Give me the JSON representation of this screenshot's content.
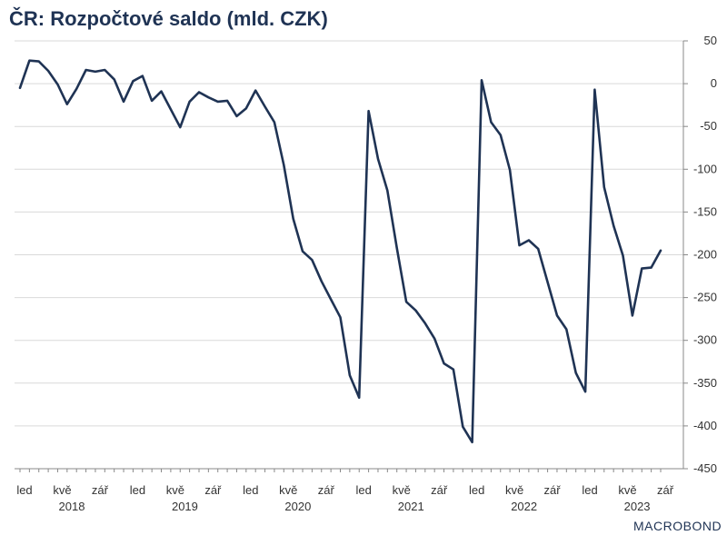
{
  "title": "ČR: Rozpočtové saldo (mld. CZK)",
  "brand": "MACROBOND",
  "colors": {
    "line": "#1f3354",
    "grid": "#d9d9d9",
    "axis": "#888888",
    "title": "#1f3354"
  },
  "chart_data": {
    "type": "line",
    "title": "ČR: Rozpočtové saldo (mld. CZK)",
    "y_axis_side": "right",
    "ylim": [
      -450,
      50
    ],
    "yticks": [
      50,
      0,
      -50,
      -100,
      -150,
      -200,
      -250,
      -300,
      -350,
      -400,
      -450
    ],
    "grid": true,
    "month_tick_labels": [
      "led",
      "kvě",
      "zář",
      "led",
      "kvě",
      "zář",
      "led",
      "kvě",
      "zář",
      "led",
      "kvě",
      "zář",
      "led",
      "kvě",
      "zář",
      "led",
      "kvě",
      "zář"
    ],
    "year_labels": [
      "2018",
      "2019",
      "2020",
      "2021",
      "2022",
      "2023"
    ],
    "series": [
      {
        "start": "2018-01",
        "values": [
          -5,
          27,
          26,
          15,
          -1,
          -24,
          -6,
          16,
          14,
          16,
          5,
          -21,
          3,
          9,
          -20,
          -9,
          -30,
          -51,
          -21,
          -10,
          -16,
          -21,
          -20,
          -38,
          -29,
          -8,
          -27,
          -45,
          -95,
          -158,
          -196,
          -206,
          -231,
          -252,
          -273,
          -341,
          -367,
          -32,
          -88,
          -125,
          -192,
          -255,
          -265,
          -280,
          -298,
          -327,
          -334,
          -401,
          -419,
          4,
          -45,
          -60,
          -101,
          -189,
          -183,
          -193,
          -232,
          -271,
          -287,
          -338,
          -360,
          -7,
          -121,
          -166,
          -201,
          -271,
          -216,
          -215,
          -195
        ]
      }
    ]
  }
}
